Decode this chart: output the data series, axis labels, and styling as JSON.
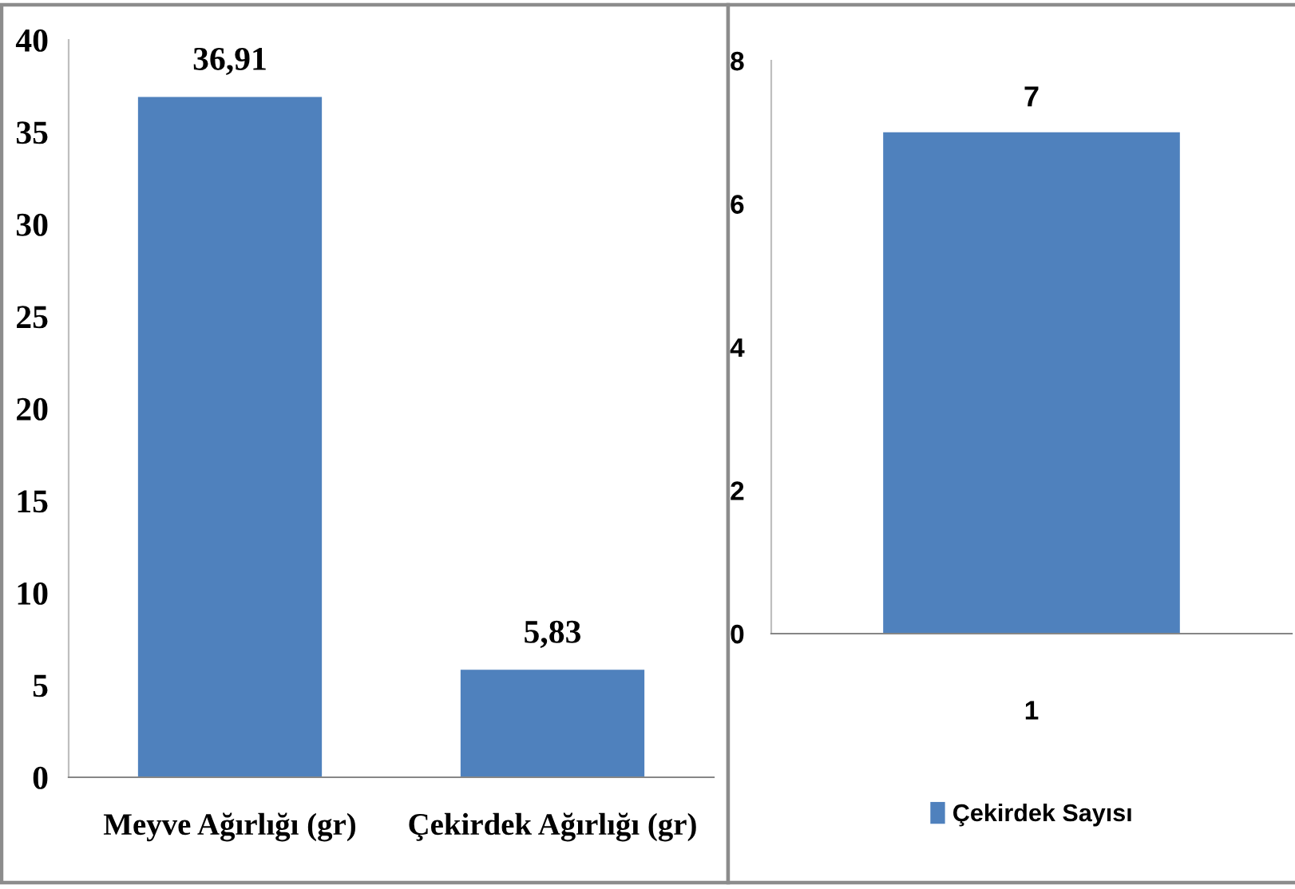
{
  "chart_data": [
    {
      "type": "bar",
      "categories": [
        "Meyve Ağırlığı (gr)",
        "Çekirdek Ağırlığı (gr)"
      ],
      "values": [
        36.91,
        5.83
      ],
      "value_labels": [
        "36,91",
        "5,83"
      ],
      "color": "#4f81bd",
      "ylim": [
        0,
        40
      ],
      "yticks": [
        0,
        5,
        10,
        15,
        20,
        25,
        30,
        35,
        40
      ]
    },
    {
      "type": "bar",
      "categories": [
        "1"
      ],
      "series": [
        {
          "name": "Çekirdek Sayısı",
          "color": "#4f81bd",
          "values": [
            7
          ],
          "value_labels": [
            "7"
          ]
        }
      ],
      "ylim": [
        0,
        8
      ],
      "yticks": [
        0,
        2,
        4,
        6,
        8
      ],
      "legend": "bottom"
    }
  ]
}
